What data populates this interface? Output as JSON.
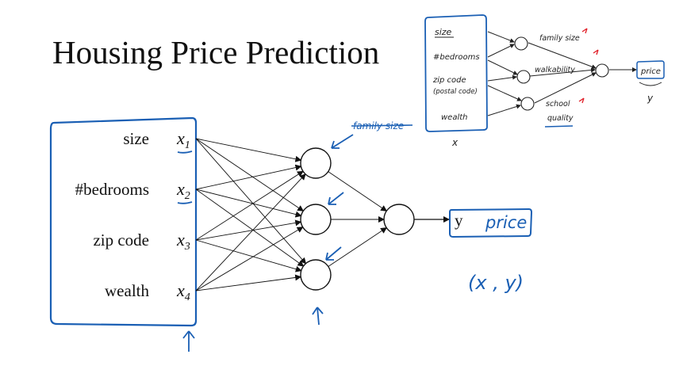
{
  "title": "Housing Price Prediction",
  "features": [
    {
      "name": "size",
      "var": "x",
      "sub": "1"
    },
    {
      "name": "#bedrooms",
      "var": "x",
      "sub": "2"
    },
    {
      "name": "zip code",
      "var": "x",
      "sub": "3"
    },
    {
      "name": "wealth",
      "var": "x",
      "sub": "4"
    }
  ],
  "output": {
    "var": "y",
    "label": "price"
  },
  "annotations": {
    "struck": "family size",
    "pair": "(x , y)"
  },
  "inset": {
    "inputs": [
      "size",
      "#bedrooms",
      "zip code",
      "(postal code)",
      "wealth"
    ],
    "hidden": [
      "family size",
      "walkability",
      "school",
      "quality"
    ],
    "output": "price",
    "x_label": "x",
    "y_label": "y"
  },
  "colors": {
    "ink": "#111111",
    "pen": "#1a5fb4",
    "red": "#e01b24"
  }
}
